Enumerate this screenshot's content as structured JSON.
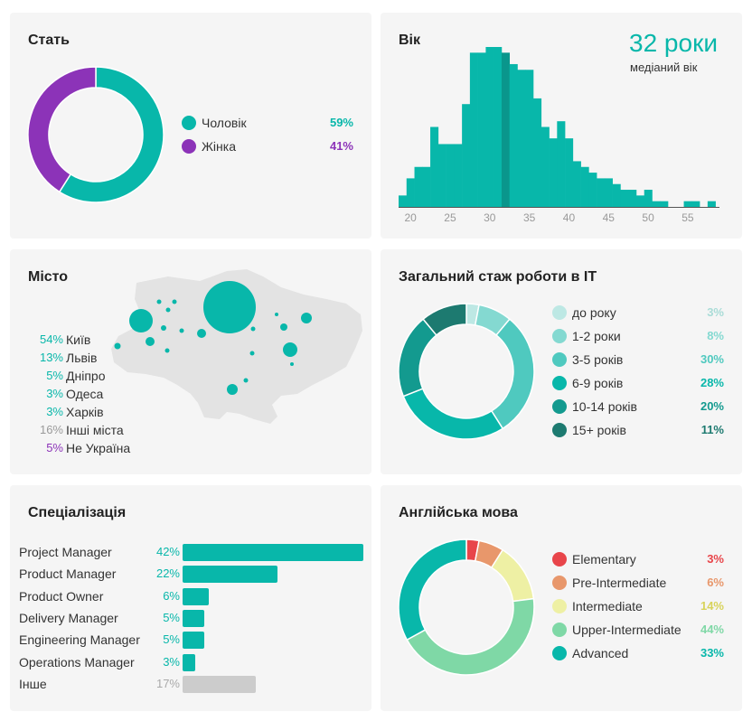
{
  "colors": {
    "teal": "#08b7aa",
    "dark_teal": "#0a968c",
    "purple": "#8c33b8",
    "gray": "#cccccc",
    "map_land": "#e3e3e3"
  },
  "gender": {
    "title": "Стать",
    "items": [
      {
        "label": "Чоловік",
        "pct": "59%",
        "value": 59,
        "color": "#08b7aa"
      },
      {
        "label": "Жінка",
        "pct": "41%",
        "value": 41,
        "color": "#8c33b8"
      }
    ]
  },
  "age": {
    "title": "Вік",
    "median_value": "32 роки",
    "median_label": "медіаний вік",
    "ticks": [
      "20",
      "25",
      "30",
      "35",
      "40",
      "45",
      "50",
      "55"
    ]
  },
  "city": {
    "title": "Місто",
    "items": [
      {
        "pct": "54%",
        "label": "Київ",
        "color": "#08b7aa"
      },
      {
        "pct": "13%",
        "label": "Львів",
        "color": "#08b7aa"
      },
      {
        "pct": "5%",
        "label": "Дніпро",
        "color": "#08b7aa"
      },
      {
        "pct": "3%",
        "label": "Одеса",
        "color": "#08b7aa"
      },
      {
        "pct": "3%",
        "label": "Харків",
        "color": "#08b7aa"
      },
      {
        "pct": "16%",
        "label": "Інші міста",
        "color": "#9a9a9a"
      },
      {
        "pct": "5%",
        "label": "Не Україна",
        "color": "#8c33b8"
      }
    ]
  },
  "experience": {
    "title": "Загальний стаж роботи в IT",
    "items": [
      {
        "label": "до року",
        "pct": "3%",
        "value": 3,
        "color": "#bde8e4"
      },
      {
        "label": "1-2 роки",
        "pct": "8%",
        "value": 8,
        "color": "#84d9d1"
      },
      {
        "label": "3-5 років",
        "pct": "30%",
        "value": 30,
        "color": "#4fc9bf"
      },
      {
        "label": "6-9 років",
        "pct": "28%",
        "value": 28,
        "color": "#08b7aa"
      },
      {
        "label": "10-14 років",
        "pct": "20%",
        "value": 20,
        "color": "#139a8f"
      },
      {
        "label": "15+ років",
        "pct": "11%",
        "value": 11,
        "color": "#1d7a70"
      }
    ]
  },
  "specialization": {
    "title": "Спеціалізація",
    "items": [
      {
        "label": "Project Manager",
        "pct": "42%",
        "value": 42,
        "color": "#08b7aa"
      },
      {
        "label": "Product Manager",
        "pct": "22%",
        "value": 22,
        "color": "#08b7aa"
      },
      {
        "label": "Product Owner",
        "pct": "6%",
        "value": 6,
        "color": "#08b7aa"
      },
      {
        "label": "Delivery Manager",
        "pct": "5%",
        "value": 5,
        "color": "#08b7aa"
      },
      {
        "label": "Engineering Manager",
        "pct": "5%",
        "value": 5,
        "color": "#08b7aa"
      },
      {
        "label": "Operations Manager",
        "pct": "3%",
        "value": 3,
        "color": "#08b7aa"
      },
      {
        "label": "Інше",
        "pct": "17%",
        "value": 17,
        "color": "#cccccc"
      }
    ]
  },
  "english": {
    "title": "Англійська мова",
    "items": [
      {
        "label": "Elementary",
        "pct": "3%",
        "value": 3,
        "color": "#e8454a"
      },
      {
        "label": "Pre-Intermediate",
        "pct": "6%",
        "value": 6,
        "color": "#e8976b"
      },
      {
        "label": "Intermediate",
        "pct": "14%",
        "value": 14,
        "color": "#eef0a4"
      },
      {
        "label": "Upper-Intermediate",
        "pct": "44%",
        "value": 44,
        "color": "#7fd8a6"
      },
      {
        "label": "Advanced",
        "pct": "33%",
        "value": 33,
        "color": "#08b7aa"
      }
    ]
  },
  "chart_data": [
    {
      "type": "pie",
      "title": "Стать",
      "categories": [
        "Чоловік",
        "Жінка"
      ],
      "values": [
        59,
        41
      ]
    },
    {
      "type": "bar",
      "title": "Вік",
      "x": [
        19,
        20,
        21,
        22,
        23,
        24,
        25,
        26,
        27,
        28,
        29,
        30,
        31,
        32,
        33,
        34,
        35,
        36,
        37,
        38,
        39,
        40,
        41,
        42,
        43,
        44,
        45,
        46,
        47,
        48,
        49,
        50,
        51,
        52,
        53,
        54,
        55,
        56,
        57,
        58
      ],
      "values": [
        2,
        5,
        7,
        7,
        14,
        11,
        11,
        11,
        18,
        27,
        27,
        28,
        28,
        27,
        25,
        24,
        24,
        19,
        14,
        12,
        15,
        12,
        8,
        7,
        6,
        5,
        5,
        4,
        3,
        3,
        2,
        3,
        1,
        1,
        0,
        0,
        1,
        1,
        0,
        1
      ],
      "highlight_x": 32,
      "xticks": [
        20,
        25,
        30,
        35,
        40,
        45,
        50,
        55
      ],
      "annotation": "32 роки"
    },
    {
      "type": "pie",
      "title": "Загальний стаж роботи в IT",
      "categories": [
        "до року",
        "1-2 роки",
        "3-5 років",
        "6-9 років",
        "10-14 років",
        "15+ років"
      ],
      "values": [
        3,
        8,
        30,
        28,
        20,
        11
      ]
    },
    {
      "type": "bar",
      "title": "Спеціалізація",
      "categories": [
        "Project Manager",
        "Product Manager",
        "Product Owner",
        "Delivery Manager",
        "Engineering Manager",
        "Operations Manager",
        "Інше"
      ],
      "values": [
        42,
        22,
        6,
        5,
        5,
        3,
        17
      ]
    },
    {
      "type": "pie",
      "title": "Англійська мова",
      "categories": [
        "Elementary",
        "Pre-Intermediate",
        "Intermediate",
        "Upper-Intermediate",
        "Advanced"
      ],
      "values": [
        3,
        6,
        14,
        44,
        33
      ]
    }
  ]
}
